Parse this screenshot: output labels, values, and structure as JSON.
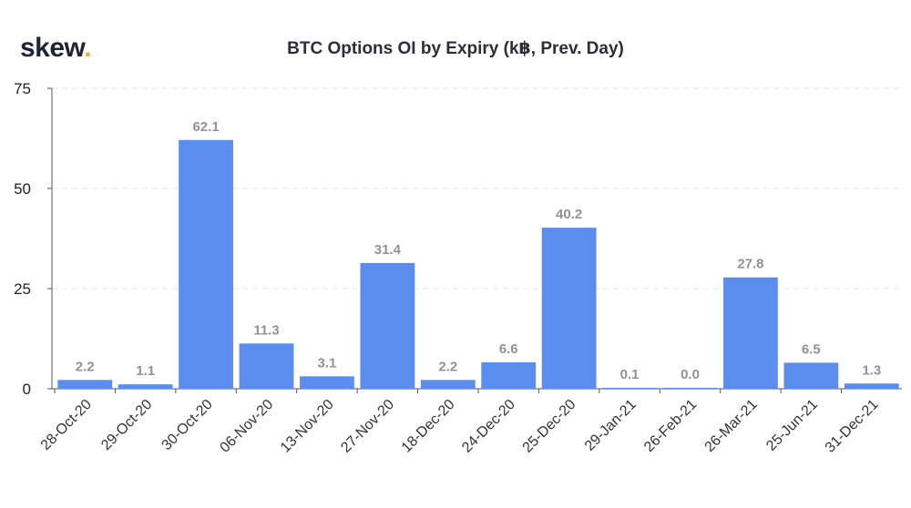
{
  "brand": {
    "logo_text": "skew",
    "logo_dot": ".",
    "accent": "#f2b01e"
  },
  "chart_data": {
    "type": "bar",
    "title": "BTC Options OI by Expiry (k฿, Prev. Day)",
    "xlabel": "",
    "ylabel": "",
    "categories": [
      "28-Oct-20",
      "29-Oct-20",
      "30-Oct-20",
      "06-Nov-20",
      "13-Nov-20",
      "27-Nov-20",
      "18-Dec-20",
      "24-Dec-20",
      "25-Dec-20",
      "29-Jan-21",
      "26-Feb-21",
      "26-Mar-21",
      "25-Jun-21",
      "31-Dec-21"
    ],
    "values": [
      2.2,
      1.1,
      62.1,
      11.3,
      3.1,
      31.4,
      2.2,
      6.6,
      40.2,
      0.1,
      0.0,
      27.8,
      6.5,
      1.3
    ],
    "value_labels": [
      "2.2",
      "1.1",
      "62.1",
      "11.3",
      "3.1",
      "31.4",
      "2.2",
      "6.6",
      "40.2",
      "0.1",
      "0.0",
      "27.8",
      "6.5",
      "1.3"
    ],
    "yticks": [
      0,
      25,
      50,
      75
    ],
    "ylim": [
      0,
      75
    ],
    "grid": true,
    "bar_color": "#5b8def",
    "label_color": "#8f9399"
  }
}
